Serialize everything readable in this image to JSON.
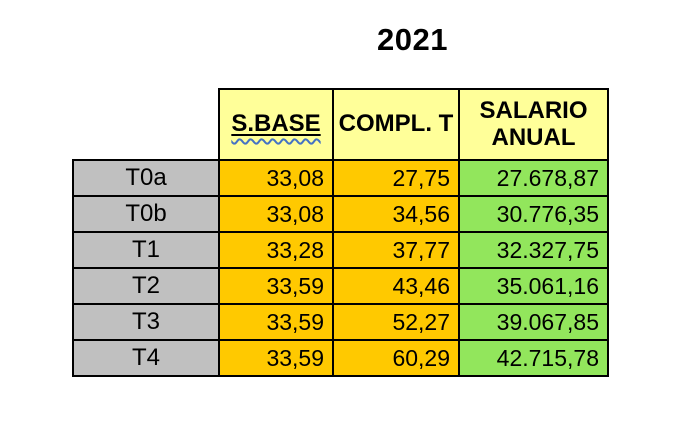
{
  "title": "2021",
  "table": {
    "header": {
      "s_base": "S.BASE",
      "compl_t": "COMPL. T",
      "salario_anual": "SALARIO ANUAL"
    },
    "rows": [
      {
        "label": "T0a",
        "s_base": "33,08",
        "compl_t": "27,75",
        "salario": "27.678,87"
      },
      {
        "label": "T0b",
        "s_base": "33,08",
        "compl_t": "34,56",
        "salario": "30.776,35"
      },
      {
        "label": "T1",
        "s_base": "33,28",
        "compl_t": "37,77",
        "salario": "32.327,75"
      },
      {
        "label": "T2",
        "s_base": "33,59",
        "compl_t": "43,46",
        "salario": "35.061,16"
      },
      {
        "label": "T3",
        "s_base": "33,59",
        "compl_t": "52,27",
        "salario": "39.067,85"
      },
      {
        "label": "T4",
        "s_base": "33,59",
        "compl_t": "60,29",
        "salario": "42.715,78"
      }
    ]
  },
  "colors": {
    "header_bg": "#FFFF99",
    "label_bg": "#C0C0C0",
    "value_bg": "#FFC900",
    "salary_bg": "#92E65C",
    "border": "#000000",
    "spellcheck_wavy": "#4472C4",
    "title_text": "#000000"
  },
  "chart_data": {
    "type": "table",
    "title": "2021",
    "columns": [
      "",
      "S.BASE",
      "COMPL. T",
      "SALARIO ANUAL"
    ],
    "rows": [
      [
        "T0a",
        "33,08",
        "27,75",
        "27.678,87"
      ],
      [
        "T0b",
        "33,08",
        "34,56",
        "30.776,35"
      ],
      [
        "T1",
        "33,28",
        "37,77",
        "32.327,75"
      ],
      [
        "T2",
        "33,59",
        "43,46",
        "35.061,16"
      ],
      [
        "T3",
        "33,59",
        "52,27",
        "39.067,85"
      ],
      [
        "T4",
        "33,59",
        "60,29",
        "42.715,78"
      ]
    ],
    "numeric_values": {
      "categories": [
        "T0a",
        "T0b",
        "T1",
        "T2",
        "T3",
        "T4"
      ],
      "s_base": [
        33.08,
        33.08,
        33.28,
        33.59,
        33.59,
        33.59
      ],
      "compl_t": [
        27.75,
        34.56,
        37.77,
        43.46,
        52.27,
        60.29
      ],
      "salario_anual": [
        27678.87,
        30776.35,
        32327.75,
        35061.16,
        39067.85,
        42715.78
      ]
    }
  }
}
